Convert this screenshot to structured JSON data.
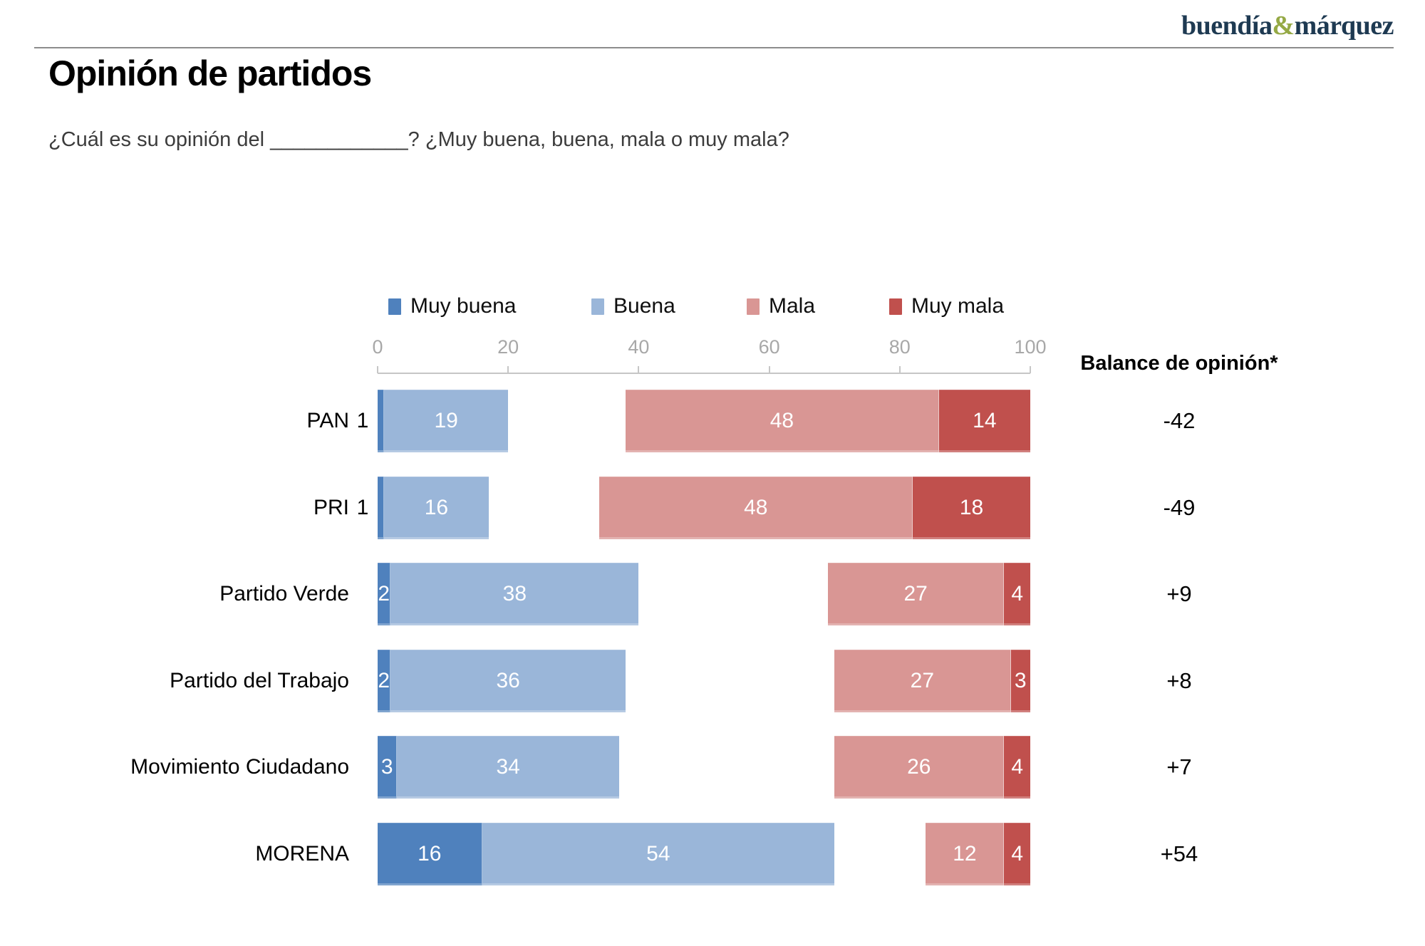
{
  "brand": {
    "name_left": "buendía",
    "ampersand": "&",
    "name_right": "márquez"
  },
  "header": {
    "title": "Opinión de partidos",
    "subtitle": "¿Cuál es su opinión del ____________? ¿Muy buena, buena, mala o muy mala?"
  },
  "balance_header": "Balance de opinión*",
  "chart_data": {
    "type": "bar",
    "subtype": "diverging-stacked-horizontal",
    "title": "Opinión de partidos",
    "categories": [
      "PAN",
      "PRI",
      "Partido Verde",
      "Partido del Trabajo",
      "Movimiento Ciudadano",
      "MORENA"
    ],
    "series": [
      {
        "name": "Muy buena",
        "color": "#4f81bd",
        "values": [
          1,
          1,
          2,
          2,
          3,
          16
        ]
      },
      {
        "name": "Buena",
        "color": "#9ab6d9",
        "values": [
          19,
          16,
          38,
          36,
          34,
          54
        ]
      },
      {
        "name": "Mala",
        "color": "#d99694",
        "values": [
          48,
          48,
          27,
          27,
          26,
          12
        ]
      },
      {
        "name": "Muy mala",
        "color": "#c0504d",
        "values": [
          14,
          18,
          4,
          3,
          4,
          4
        ]
      }
    ],
    "balance": [
      -42,
      -49,
      9,
      8,
      7,
      54
    ],
    "balance_labels": [
      "-42",
      "-49",
      "+9",
      "+8",
      "+7",
      "+54"
    ],
    "axis": {
      "ticks": [
        0,
        20,
        40,
        60,
        80,
        100
      ],
      "range": [
        0,
        100
      ]
    },
    "layout": {
      "positive_segments_left_aligned_at_0": true,
      "negative_segments_right_aligned_at_100": true,
      "legend_position": "top",
      "grid": false,
      "small_positive_values_labeled_outside": true
    }
  }
}
